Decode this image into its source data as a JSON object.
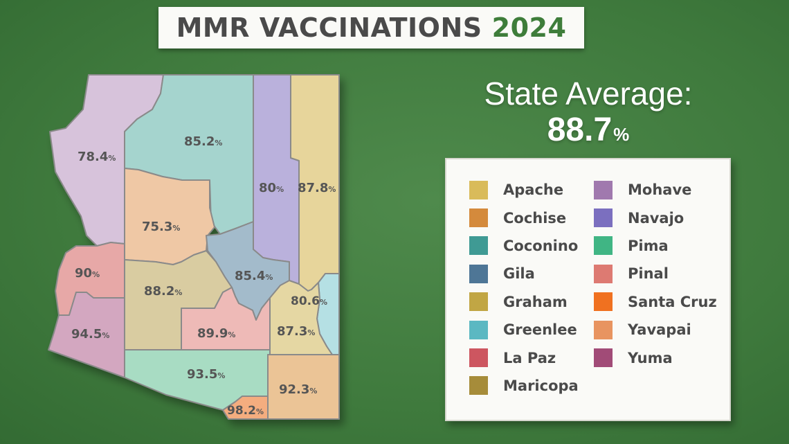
{
  "title": {
    "main": "MMR VACCINATIONS",
    "year": "2024"
  },
  "state_average": {
    "label": "State Average:",
    "value": "88.7",
    "unit": "%"
  },
  "legend": {
    "left": [
      {
        "name": "Apache",
        "color": "#d9bb5a"
      },
      {
        "name": "Cochise",
        "color": "#d48a3c"
      },
      {
        "name": "Coconino",
        "color": "#3f9a94"
      },
      {
        "name": "Gila",
        "color": "#4e7696"
      },
      {
        "name": "Graham",
        "color": "#c1a644"
      },
      {
        "name": "Greenlee",
        "color": "#5bb8c2"
      },
      {
        "name": "La Paz",
        "color": "#cd5660"
      },
      {
        "name": "Maricopa",
        "color": "#a68c3a"
      }
    ],
    "right": [
      {
        "name": "Mohave",
        "color": "#a079ae"
      },
      {
        "name": "Navajo",
        "color": "#7b6fbf"
      },
      {
        "name": "Pima",
        "color": "#40b584"
      },
      {
        "name": "Pinal",
        "color": "#dd7a72"
      },
      {
        "name": "Santa Cruz",
        "color": "#f07120"
      },
      {
        "name": "Yavapai",
        "color": "#e89460"
      },
      {
        "name": "Yuma",
        "color": "#a14b77"
      }
    ]
  },
  "counties": [
    {
      "name": "Mohave",
      "value": "78.4",
      "unit": "%",
      "color": "#d7c3db"
    },
    {
      "name": "Coconino",
      "value": "85.2",
      "unit": "%",
      "color": "#a5d4ce"
    },
    {
      "name": "Navajo",
      "value": "80",
      "unit": "%",
      "color": "#bab1dc"
    },
    {
      "name": "Apache",
      "value": "87.8",
      "unit": "%",
      "color": "#e7d59b"
    },
    {
      "name": "Yavapai",
      "value": "75.3",
      "unit": "%",
      "color": "#efc8a5"
    },
    {
      "name": "La Paz",
      "value": "90",
      "unit": "%",
      "color": "#e7a8a7"
    },
    {
      "name": "Gila",
      "value": "85.4",
      "unit": "%",
      "color": "#a3bbcb"
    },
    {
      "name": "Maricopa",
      "value": "88.2",
      "unit": "%",
      "color": "#d9cca1"
    },
    {
      "name": "Greenlee",
      "value": "80.6",
      "unit": "%",
      "color": "#b5e0e4"
    },
    {
      "name": "Yuma",
      "value": "94.5",
      "unit": "%",
      "color": "#d3a7c0"
    },
    {
      "name": "Pinal",
      "value": "89.9",
      "unit": "%",
      "color": "#eebab7"
    },
    {
      "name": "Graham",
      "value": "87.3",
      "unit": "%",
      "color": "#e5d7a3"
    },
    {
      "name": "Pima",
      "value": "93.5",
      "unit": "%",
      "color": "#a8dcc3"
    },
    {
      "name": "Cochise",
      "value": "92.3",
      "unit": "%",
      "color": "#ebc496"
    },
    {
      "name": "Santa Cruz",
      "value": "98.2",
      "unit": "%",
      "color": "#f4ad7f"
    }
  ]
}
